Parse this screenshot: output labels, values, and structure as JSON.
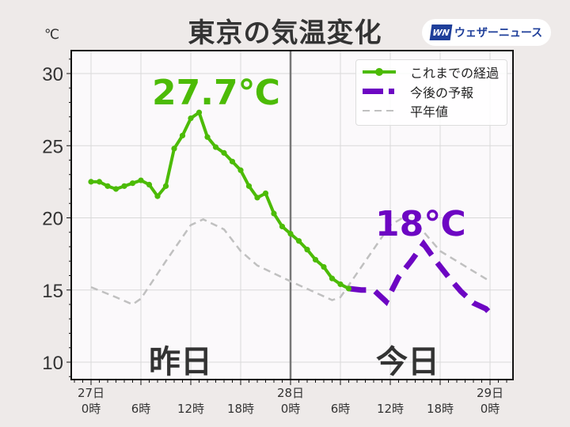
{
  "header": {
    "title": "東京の気温変化",
    "unit": "℃",
    "brand_logo": "WN",
    "brand_name": "ウェザーニュース"
  },
  "legend": {
    "items": [
      {
        "label": "これまでの経過",
        "style": "solid-marker",
        "color": "#4cbb06"
      },
      {
        "label": "今後の予報",
        "style": "dashed-thick",
        "color": "#6d06c3"
      },
      {
        "label": "平年値",
        "style": "dashed-thin",
        "color": "#c0c0c0"
      }
    ]
  },
  "annotations": {
    "max_observed": "27.7℃",
    "max_forecast": "18℃",
    "yesterday": "昨日",
    "today": "今日"
  },
  "colors": {
    "observed": "#4cbb06",
    "forecast": "#6d06c3",
    "normal": "#c0c0c0",
    "background": "#eeeae9",
    "plot_bg": "#fbf9fb",
    "grid": "#d9d9d9"
  },
  "chart_data": {
    "type": "line",
    "title": "東京の気温変化",
    "xlabel": "",
    "ylabel": "℃",
    "ylim": [
      9,
      31.5
    ],
    "xlim_hours": [
      -2.3,
      50.5
    ],
    "yticks": [
      10,
      15,
      20,
      25,
      30
    ],
    "xticks": [
      {
        "hour": 0,
        "label": [
          "27日",
          "0時"
        ]
      },
      {
        "hour": 6,
        "label": [
          "",
          "6時"
        ]
      },
      {
        "hour": 12,
        "label": [
          "",
          "12時"
        ]
      },
      {
        "hour": 18,
        "label": [
          "",
          "18時"
        ]
      },
      {
        "hour": 24,
        "label": [
          "28日",
          "0時"
        ]
      },
      {
        "hour": 30,
        "label": [
          "",
          "6時"
        ]
      },
      {
        "hour": 36,
        "label": [
          "",
          "12時"
        ]
      },
      {
        "hour": 42,
        "label": [
          "",
          "18時"
        ]
      },
      {
        "hour": 48,
        "label": [
          "29日",
          "0時"
        ]
      }
    ],
    "grid": true,
    "legend_position": "upper right",
    "divider_hour": 24,
    "series": [
      {
        "name": "これまでの経過",
        "x": [
          0,
          1,
          2,
          3,
          4,
          5,
          6,
          7,
          8,
          9,
          10,
          11,
          12,
          13,
          14,
          15,
          16,
          17,
          18,
          19,
          20,
          21,
          22,
          23,
          24,
          25,
          26,
          27,
          28,
          29,
          30,
          31
        ],
        "values": [
          22.5,
          22.5,
          22.2,
          22.0,
          22.2,
          22.4,
          22.6,
          22.3,
          21.5,
          22.2,
          24.8,
          25.7,
          26.9,
          27.3,
          25.6,
          24.9,
          24.5,
          23.9,
          23.3,
          22.2,
          21.4,
          21.7,
          20.3,
          19.4,
          18.9,
          18.4,
          17.8,
          17.1,
          16.6,
          15.8,
          15.4,
          15.1
        ]
      },
      {
        "name": "今後の予報",
        "x": [
          31,
          32.5,
          34,
          35.5,
          37,
          38.5,
          40,
          41.5,
          43,
          44.5,
          46,
          47.5,
          48.5
        ],
        "values": [
          15.1,
          15.0,
          15.0,
          14.2,
          15.9,
          17.0,
          18.2,
          17.0,
          15.9,
          14.9,
          14.1,
          13.7,
          13.1
        ]
      },
      {
        "name": "平年値",
        "x": [
          0,
          3,
          5,
          6,
          9,
          12,
          13.5,
          16,
          18,
          20,
          24,
          29,
          30,
          33,
          36,
          37.5,
          39,
          42,
          44,
          48
        ],
        "values": [
          15.2,
          14.5,
          14.0,
          14.4,
          17.0,
          19.5,
          19.9,
          19.2,
          17.7,
          16.7,
          15.6,
          14.3,
          14.5,
          17.0,
          19.5,
          20.0,
          19.7,
          17.7,
          17.0,
          15.6
        ]
      }
    ]
  }
}
